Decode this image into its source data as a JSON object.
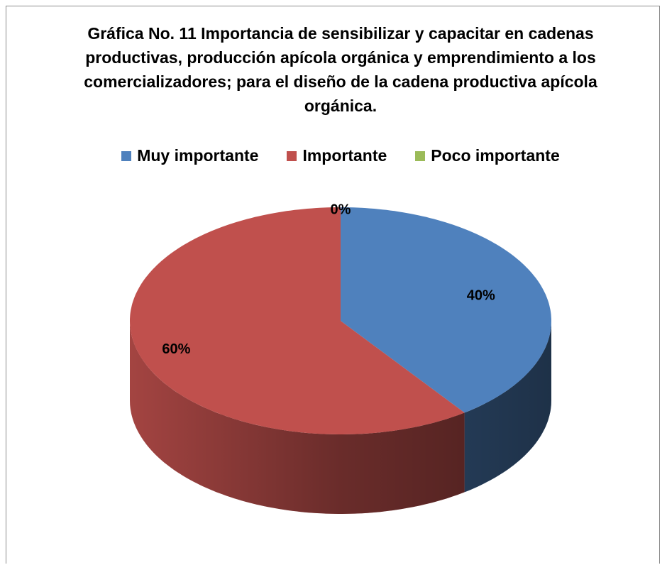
{
  "chart_data": {
    "type": "pie3d",
    "title": "Gráfica No. 11 Importancia de sensibilizar y capacitar en cadenas productivas, producción apícola orgánica y emprendimiento a los comercializadores; para el diseño de la cadena productiva apícola orgánica.",
    "categories": [
      "Muy importante",
      "Importante",
      "Poco importante"
    ],
    "values": [
      40,
      60,
      0
    ],
    "value_labels": [
      "40%",
      "60%",
      "0%"
    ],
    "colors": [
      "#4f81bd",
      "#c0504d",
      "#9bbb59"
    ],
    "legend": "top"
  }
}
